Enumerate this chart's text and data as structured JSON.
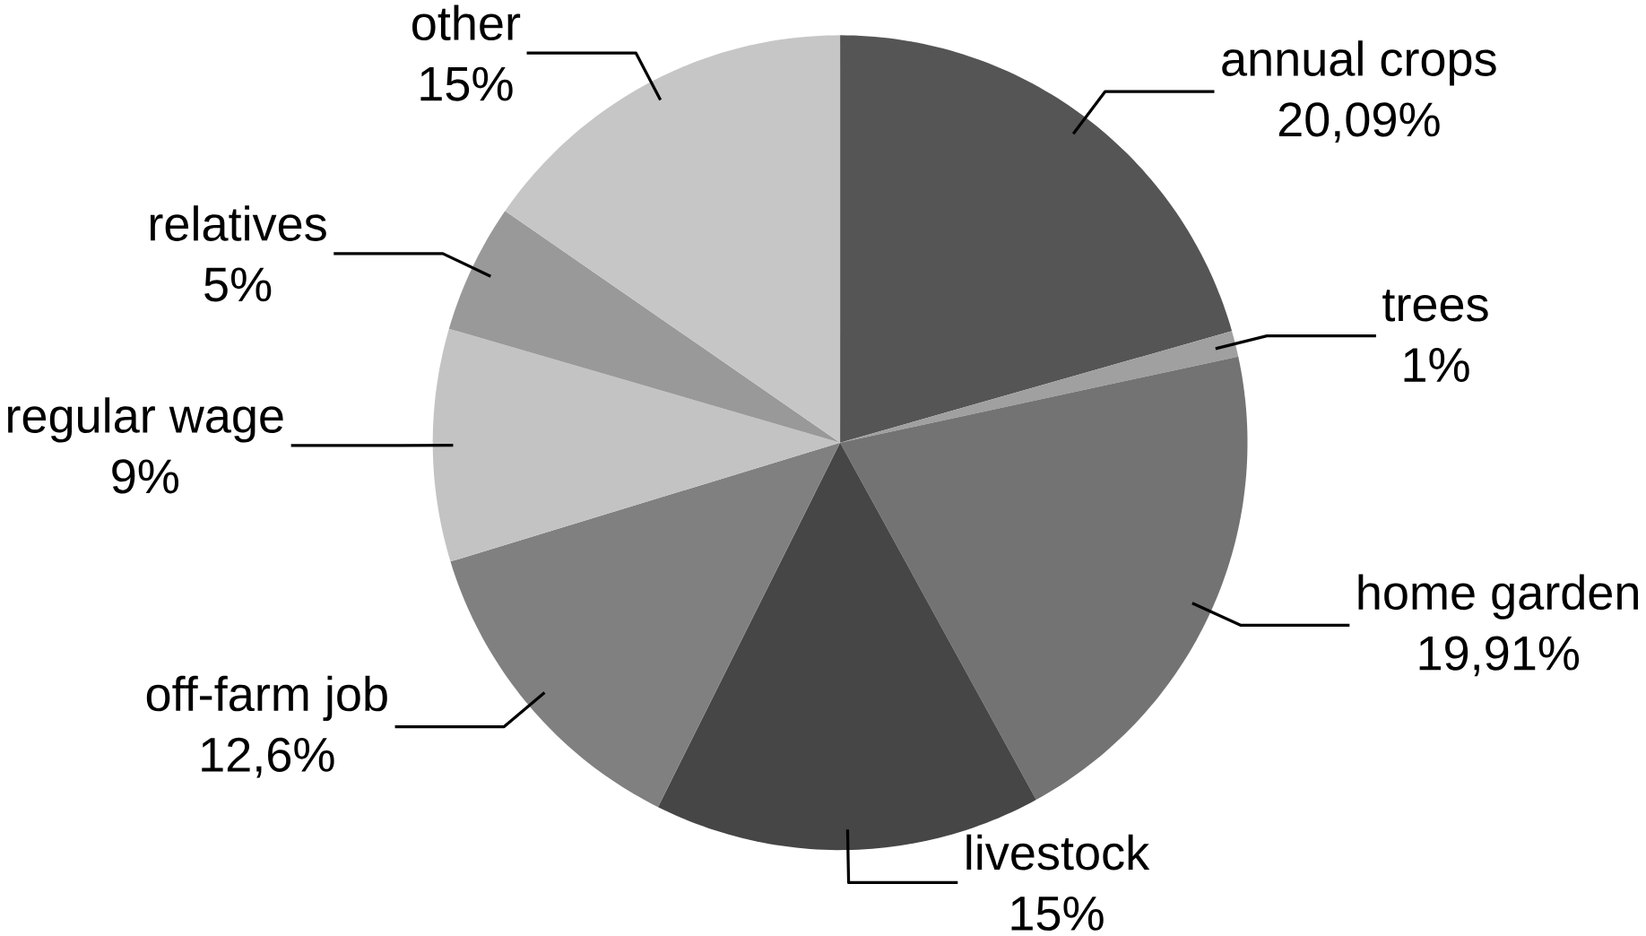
{
  "chart_data": {
    "type": "pie",
    "categories": [
      "annual crops",
      "trees",
      "home garden",
      "livestock",
      "off-farm job",
      "regular wage",
      "relatives",
      "other"
    ],
    "values": [
      20.09,
      1,
      19.91,
      15,
      12.6,
      9,
      5,
      15
    ],
    "value_labels": [
      "20,09%",
      "1%",
      "19,91%",
      "15%",
      "12,6%",
      "9%",
      "5%",
      "15%"
    ],
    "colors": [
      "#555555",
      "#a0a0a0",
      "#737373",
      "#464646",
      "#808080",
      "#c3c3c3",
      "#999999",
      "#c6c6c6"
    ]
  }
}
